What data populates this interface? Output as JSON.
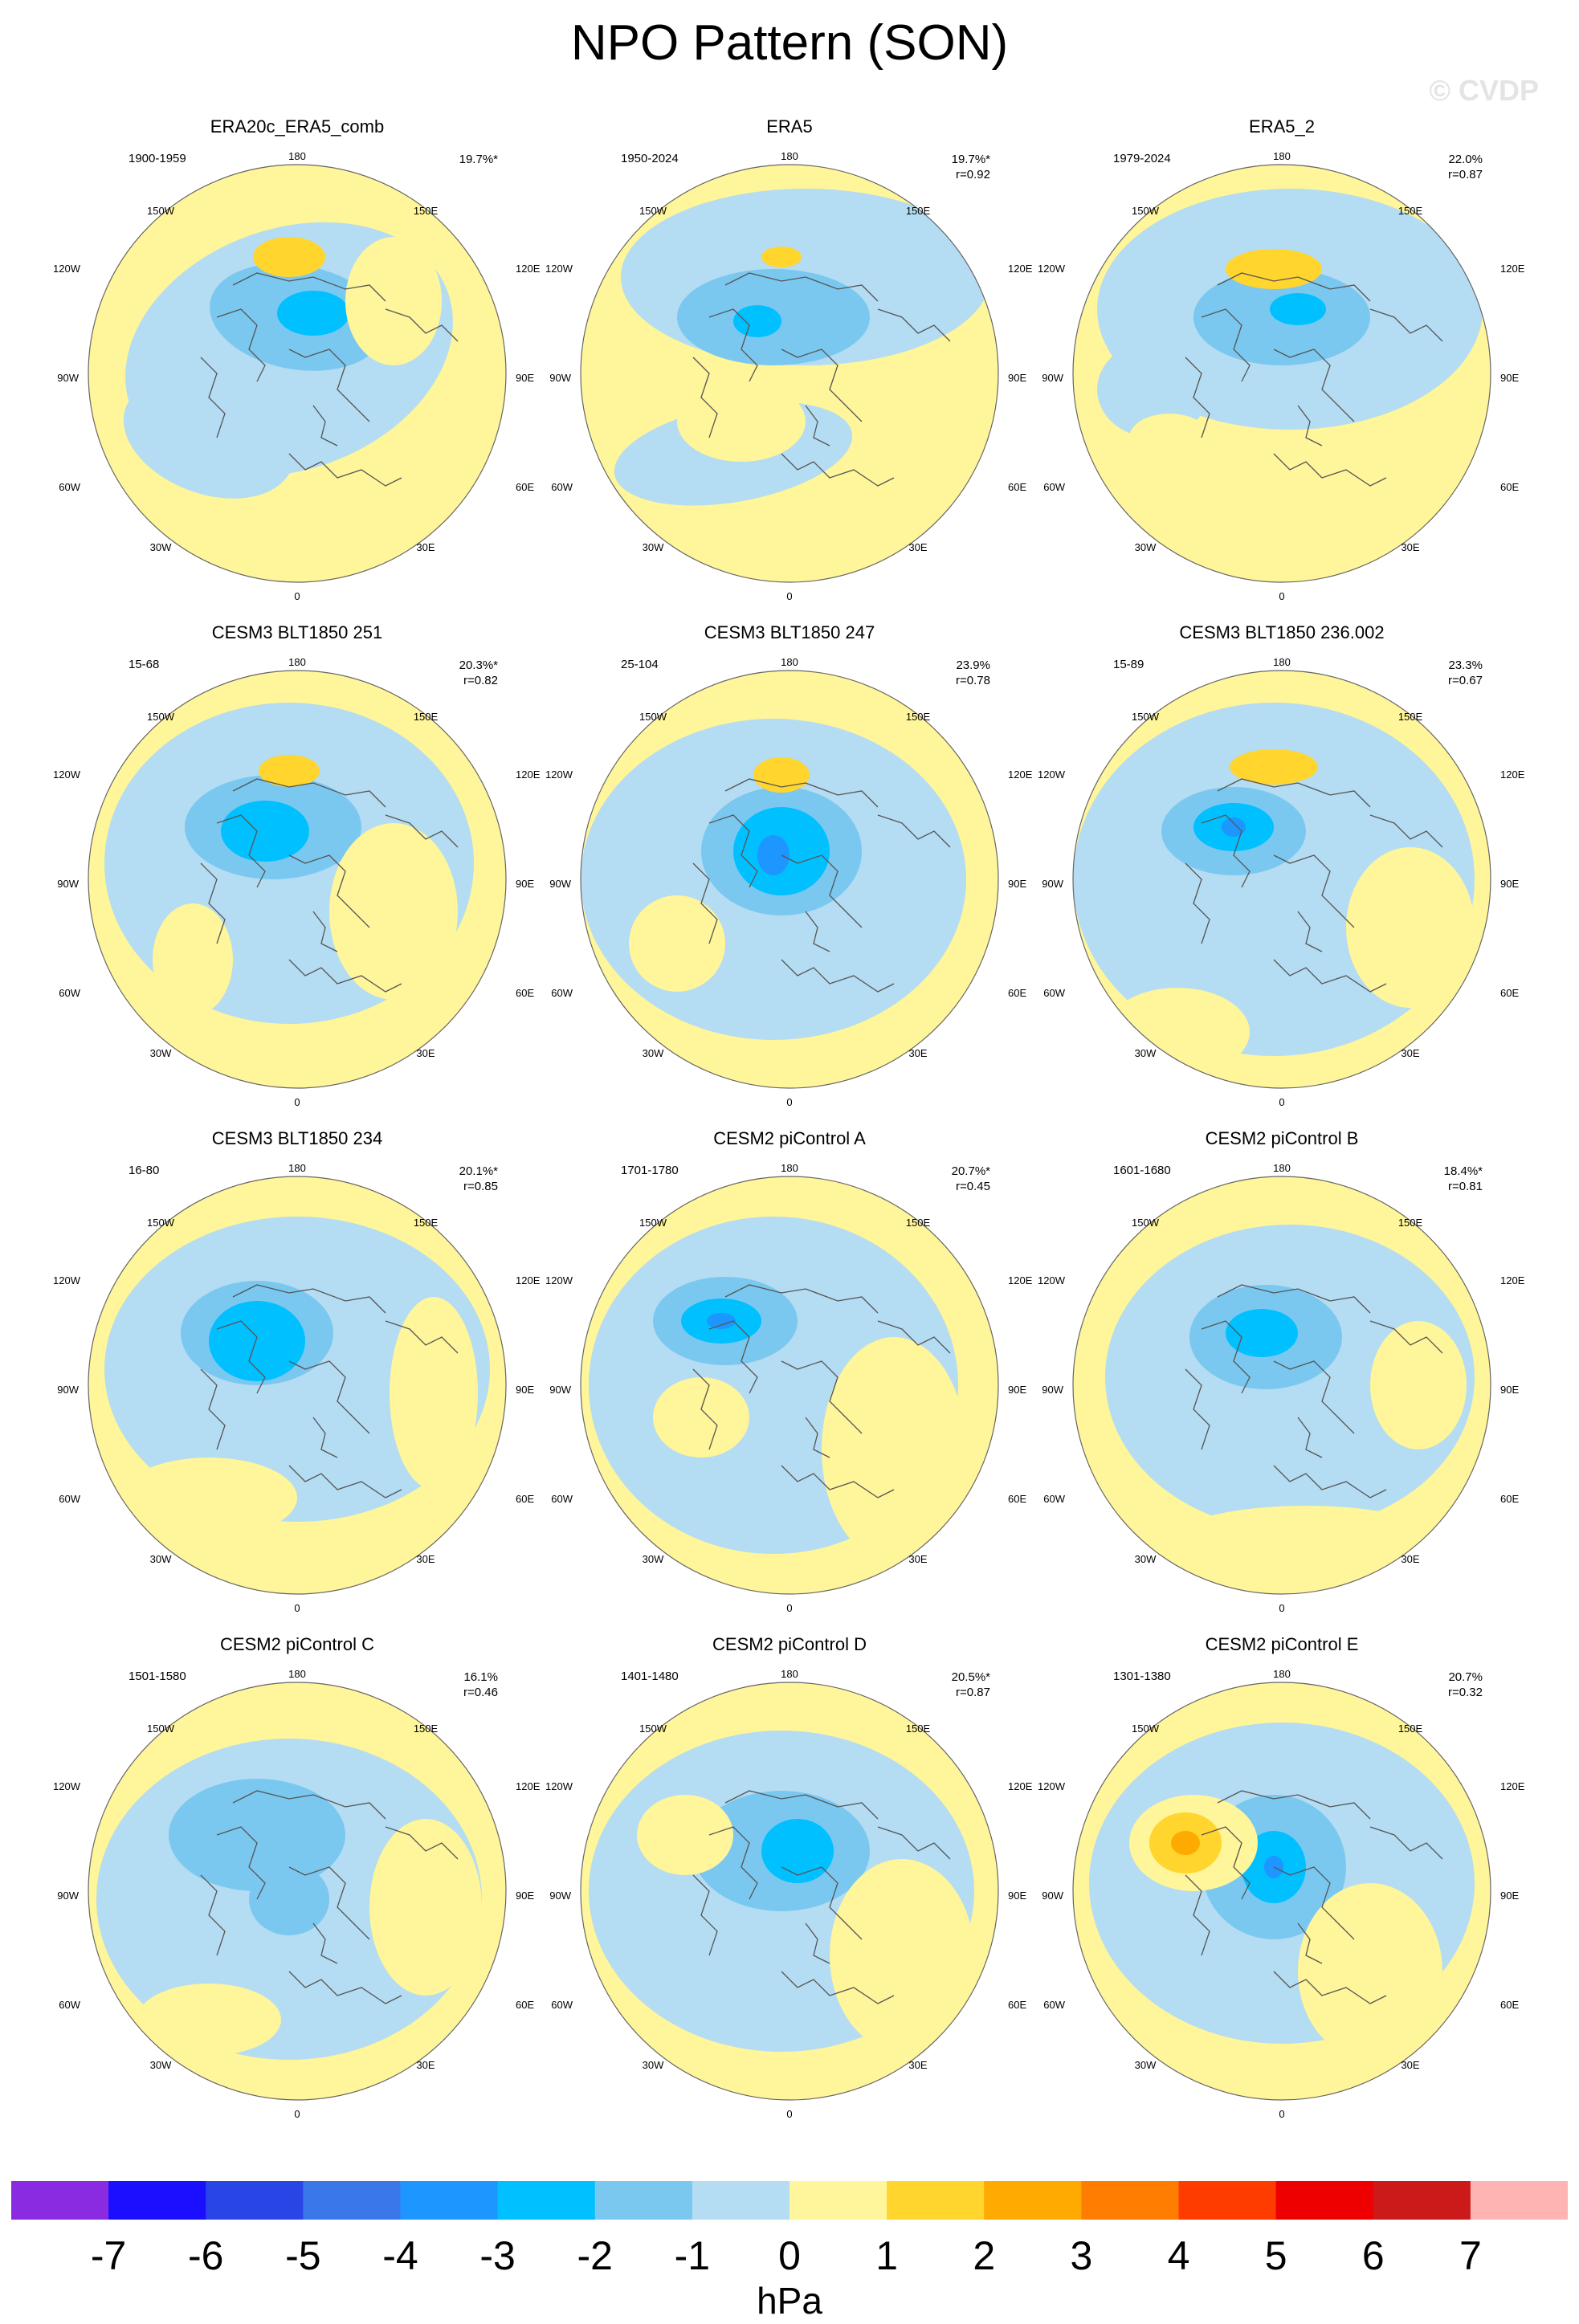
{
  "title": "NPO Pattern (SON)",
  "watermark": "© CVDP",
  "lon_labels": {
    "top": "180",
    "tl": "150W",
    "tr": "150E",
    "ul": "120W",
    "ur": "120E",
    "l": "90W",
    "r": "90E",
    "ll": "60W",
    "lr": "60E",
    "bl": "30W",
    "br": "30E",
    "bottom": "0"
  },
  "colors": {
    "ocean_ring": "#666666",
    "coast": "#555555"
  },
  "panels": [
    {
      "title": "ERA20c_ERA5_comb",
      "period": "1900-1959",
      "pct": "19.7%*",
      "r": "",
      "variant": 0
    },
    {
      "title": "ERA5",
      "period": "1950-2024",
      "pct": "19.7%*",
      "r": "r=0.92",
      "variant": 1
    },
    {
      "title": "ERA5_2",
      "period": "1979-2024",
      "pct": "22.0%",
      "r": "r=0.87",
      "variant": 2
    },
    {
      "title": "CESM3 BLT1850 251",
      "period": "15-68",
      "pct": "20.3%*",
      "r": "r=0.82",
      "variant": 3
    },
    {
      "title": "CESM3 BLT1850 247",
      "period": "25-104",
      "pct": "23.9%",
      "r": "r=0.78",
      "variant": 4
    },
    {
      "title": "CESM3 BLT1850 236.002",
      "period": "15-89",
      "pct": "23.3%",
      "r": "r=0.67",
      "variant": 5
    },
    {
      "title": "CESM3 BLT1850 234",
      "period": "16-80",
      "pct": "20.1%*",
      "r": "r=0.85",
      "variant": 6
    },
    {
      "title": "CESM2 piControl A",
      "period": "1701-1780",
      "pct": "20.7%*",
      "r": "r=0.45",
      "variant": 7
    },
    {
      "title": "CESM2 piControl B",
      "period": "1601-1680",
      "pct": "18.4%*",
      "r": "r=0.81",
      "variant": 8
    },
    {
      "title": "CESM2 piControl C",
      "period": "1501-1580",
      "pct": "16.1%",
      "r": "r=0.46",
      "variant": 9
    },
    {
      "title": "CESM2 piControl D",
      "period": "1401-1480",
      "pct": "20.5%*",
      "r": "r=0.87",
      "variant": 10
    },
    {
      "title": "CESM2 piControl E",
      "period": "1301-1380",
      "pct": "20.7%",
      "r": "r=0.32",
      "variant": 11
    }
  ],
  "colorbar": {
    "colors": [
      "#8a2be2",
      "#1a10ff",
      "#2a45e6",
      "#3a78ea",
      "#1e96ff",
      "#00c0ff",
      "#7ac8f0",
      "#b4dcf2",
      "#fff59a",
      "#ffd52e",
      "#ffaa00",
      "#ff7d00",
      "#ff3c00",
      "#ee0000",
      "#cc1a1a",
      "#ffb4b4"
    ],
    "ticks": [
      "-7",
      "-6",
      "-5",
      "-4",
      "-3",
      "-2",
      "-1",
      "0",
      "1",
      "2",
      "3",
      "4",
      "5",
      "6",
      "7"
    ],
    "units": "hPa"
  }
}
